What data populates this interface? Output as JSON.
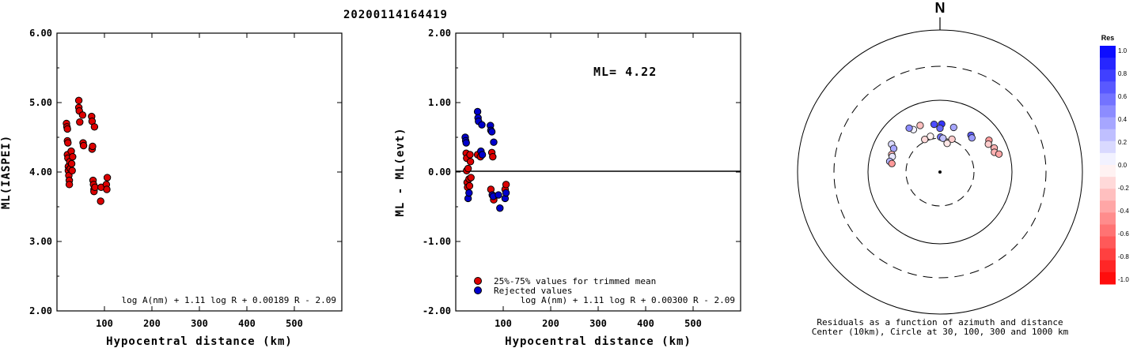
{
  "title": "20200114164419",
  "chart_data": [
    {
      "type": "scatter",
      "name": "ml-vs-distance",
      "xlabel": "Hypocentral distance (km)",
      "ylabel": "ML(IASPEI)",
      "xlim": [
        0,
        600
      ],
      "ylim": [
        2.0,
        6.0
      ],
      "xticks": [
        "100",
        "200",
        "300",
        "400",
        "500"
      ],
      "yticks": [
        "2.00",
        "3.00",
        "4.00",
        "5.00",
        "6.00"
      ],
      "formula": "log A(nm) + 1.11 log R + 0.00189 R - 2.09",
      "series": [
        {
          "color": "#dd0000",
          "points": [
            [
              20,
              4.7
            ],
            [
              21,
              4.65
            ],
            [
              22,
              4.62
            ],
            [
              22,
              4.45
            ],
            [
              23,
              4.42
            ],
            [
              22,
              4.25
            ],
            [
              23,
              4.2
            ],
            [
              24,
              4.08
            ],
            [
              24,
              4.02
            ],
            [
              25,
              3.95
            ],
            [
              26,
              3.88
            ],
            [
              26,
              3.82
            ],
            [
              27,
              4.15
            ],
            [
              28,
              4.05
            ],
            [
              30,
              4.3
            ],
            [
              31,
              4.12
            ],
            [
              32,
              4.02
            ],
            [
              33,
              4.22
            ],
            [
              46,
              5.03
            ],
            [
              46,
              4.93
            ],
            [
              47,
              4.88
            ],
            [
              48,
              4.72
            ],
            [
              54,
              4.82
            ],
            [
              55,
              4.42
            ],
            [
              56,
              4.38
            ],
            [
              73,
              4.8
            ],
            [
              74,
              4.73
            ],
            [
              74,
              4.33
            ],
            [
              75,
              4.37
            ],
            [
              76,
              3.88
            ],
            [
              77,
              3.82
            ],
            [
              78,
              3.75
            ],
            [
              78,
              3.72
            ],
            [
              79,
              4.65
            ],
            [
              80,
              3.78
            ],
            [
              92,
              3.58
            ],
            [
              93,
              3.78
            ],
            [
              104,
              3.82
            ],
            [
              105,
              3.75
            ],
            [
              106,
              3.92
            ]
          ]
        }
      ]
    },
    {
      "type": "scatter",
      "name": "residual-vs-distance",
      "xlabel": "Hypocentral distance (km)",
      "ylabel": "ML - ML(evt)",
      "xlim": [
        0,
        600
      ],
      "ylim": [
        -2.0,
        2.0
      ],
      "xticks": [
        "100",
        "200",
        "300",
        "400",
        "500"
      ],
      "yticks": [
        "-2.00",
        "-1.00",
        "0.00",
        "1.00",
        "2.00"
      ],
      "ml_text": "ML= 4.22",
      "formula": "log A(nm) + 1.11 log R + 0.00300 R - 2.09",
      "legend": [
        "25%-75% values for trimmed mean",
        "Rejected values"
      ],
      "series": [
        {
          "color": "#dd0000",
          "points": [
            [
              22,
              0.27
            ],
            [
              23,
              0.2
            ],
            [
              23,
              0.02
            ],
            [
              24,
              -0.15
            ],
            [
              25,
              -0.22
            ],
            [
              26,
              0.05
            ],
            [
              28,
              -0.1
            ],
            [
              29,
              -0.2
            ],
            [
              30,
              0.25
            ],
            [
              31,
              0.15
            ],
            [
              32,
              -0.08
            ],
            [
              46,
              0.25
            ],
            [
              52,
              0.22
            ],
            [
              74,
              -0.25
            ],
            [
              76,
              0.28
            ],
            [
              78,
              0.22
            ],
            [
              80,
              -0.4
            ],
            [
              104,
              -0.25
            ],
            [
              106,
              -0.18
            ]
          ]
        },
        {
          "color": "#0000cc",
          "points": [
            [
              20,
              0.5
            ],
            [
              21,
              0.45
            ],
            [
              22,
              0.42
            ],
            [
              26,
              -0.38
            ],
            [
              28,
              -0.3
            ],
            [
              46,
              0.87
            ],
            [
              47,
              0.78
            ],
            [
              48,
              0.73
            ],
            [
              53,
              0.3
            ],
            [
              55,
              0.68
            ],
            [
              56,
              0.25
            ],
            [
              73,
              0.67
            ],
            [
              74,
              0.6
            ],
            [
              76,
              0.58
            ],
            [
              77,
              -0.33
            ],
            [
              79,
              -0.35
            ],
            [
              80,
              0.43
            ],
            [
              90,
              -0.33
            ],
            [
              93,
              -0.52
            ],
            [
              104,
              -0.38
            ],
            [
              106,
              -0.3
            ]
          ]
        }
      ]
    },
    {
      "type": "scatter",
      "name": "residual-azimuth-polar",
      "north_label": "N",
      "caption_line1": "Residuals as a function of azimuth and distance",
      "caption_line2": "Center (10km), Circle at 30, 100, 300 and 1000 km",
      "colorbar_title": "Res",
      "colorbar_ticks": [
        "1.0",
        "0.8",
        "0.6",
        "0.4",
        "0.2",
        "0.0",
        "-0.2",
        "-0.4",
        "-0.6",
        "-0.8",
        "-1.0"
      ],
      "ring_distances_km": [
        30,
        100,
        300,
        1000
      ],
      "stations": [
        {
          "azimuth": 337,
          "distance": 51,
          "residual": -0.25
        },
        {
          "azimuth": 328,
          "distance": 50,
          "residual": 0.05
        },
        {
          "azimuth": 325,
          "distance": 56,
          "residual": 0.45
        },
        {
          "azimuth": 300,
          "distance": 60,
          "residual": 0.15
        },
        {
          "azimuth": 297,
          "distance": 53,
          "residual": 0.35
        },
        {
          "azimuth": 290,
          "distance": 52,
          "residual": -0.3
        },
        {
          "azimuth": 288,
          "distance": 50,
          "residual": 0.1
        },
        {
          "azimuth": 282,
          "distance": 52,
          "residual": 0.3
        },
        {
          "azimuth": 280,
          "distance": 48,
          "residual": -0.4
        },
        {
          "azimuth": 345,
          "distance": 33,
          "residual": -0.05
        },
        {
          "azimuth": 335,
          "distance": 32,
          "residual": -0.15
        },
        {
          "azimuth": 353,
          "distance": 47,
          "residual": 0.7
        },
        {
          "azimuth": 2,
          "distance": 47,
          "residual": 0.8
        },
        {
          "azimuth": 0,
          "distance": 41,
          "residual": 0.6
        },
        {
          "azimuth": 1,
          "distance": 31,
          "residual": 0.55
        },
        {
          "azimuth": 5,
          "distance": 30,
          "residual": 0.25
        },
        {
          "azimuth": 14,
          "distance": 26,
          "residual": -0.1
        },
        {
          "azimuth": 20,
          "distance": 31,
          "residual": -0.2
        },
        {
          "azimuth": 17,
          "distance": 45,
          "residual": 0.35
        },
        {
          "azimuth": 40,
          "distance": 47,
          "residual": 0.65
        },
        {
          "azimuth": 43,
          "distance": 45,
          "residual": 0.4
        },
        {
          "azimuth": 57,
          "distance": 65,
          "residual": -0.4
        },
        {
          "azimuth": 60,
          "distance": 60,
          "residual": -0.2
        },
        {
          "azimuth": 66,
          "distance": 67,
          "residual": -0.3
        },
        {
          "azimuth": 70,
          "distance": 64,
          "residual": -0.3
        },
        {
          "azimuth": 73,
          "distance": 72,
          "residual": -0.35
        }
      ]
    }
  ]
}
